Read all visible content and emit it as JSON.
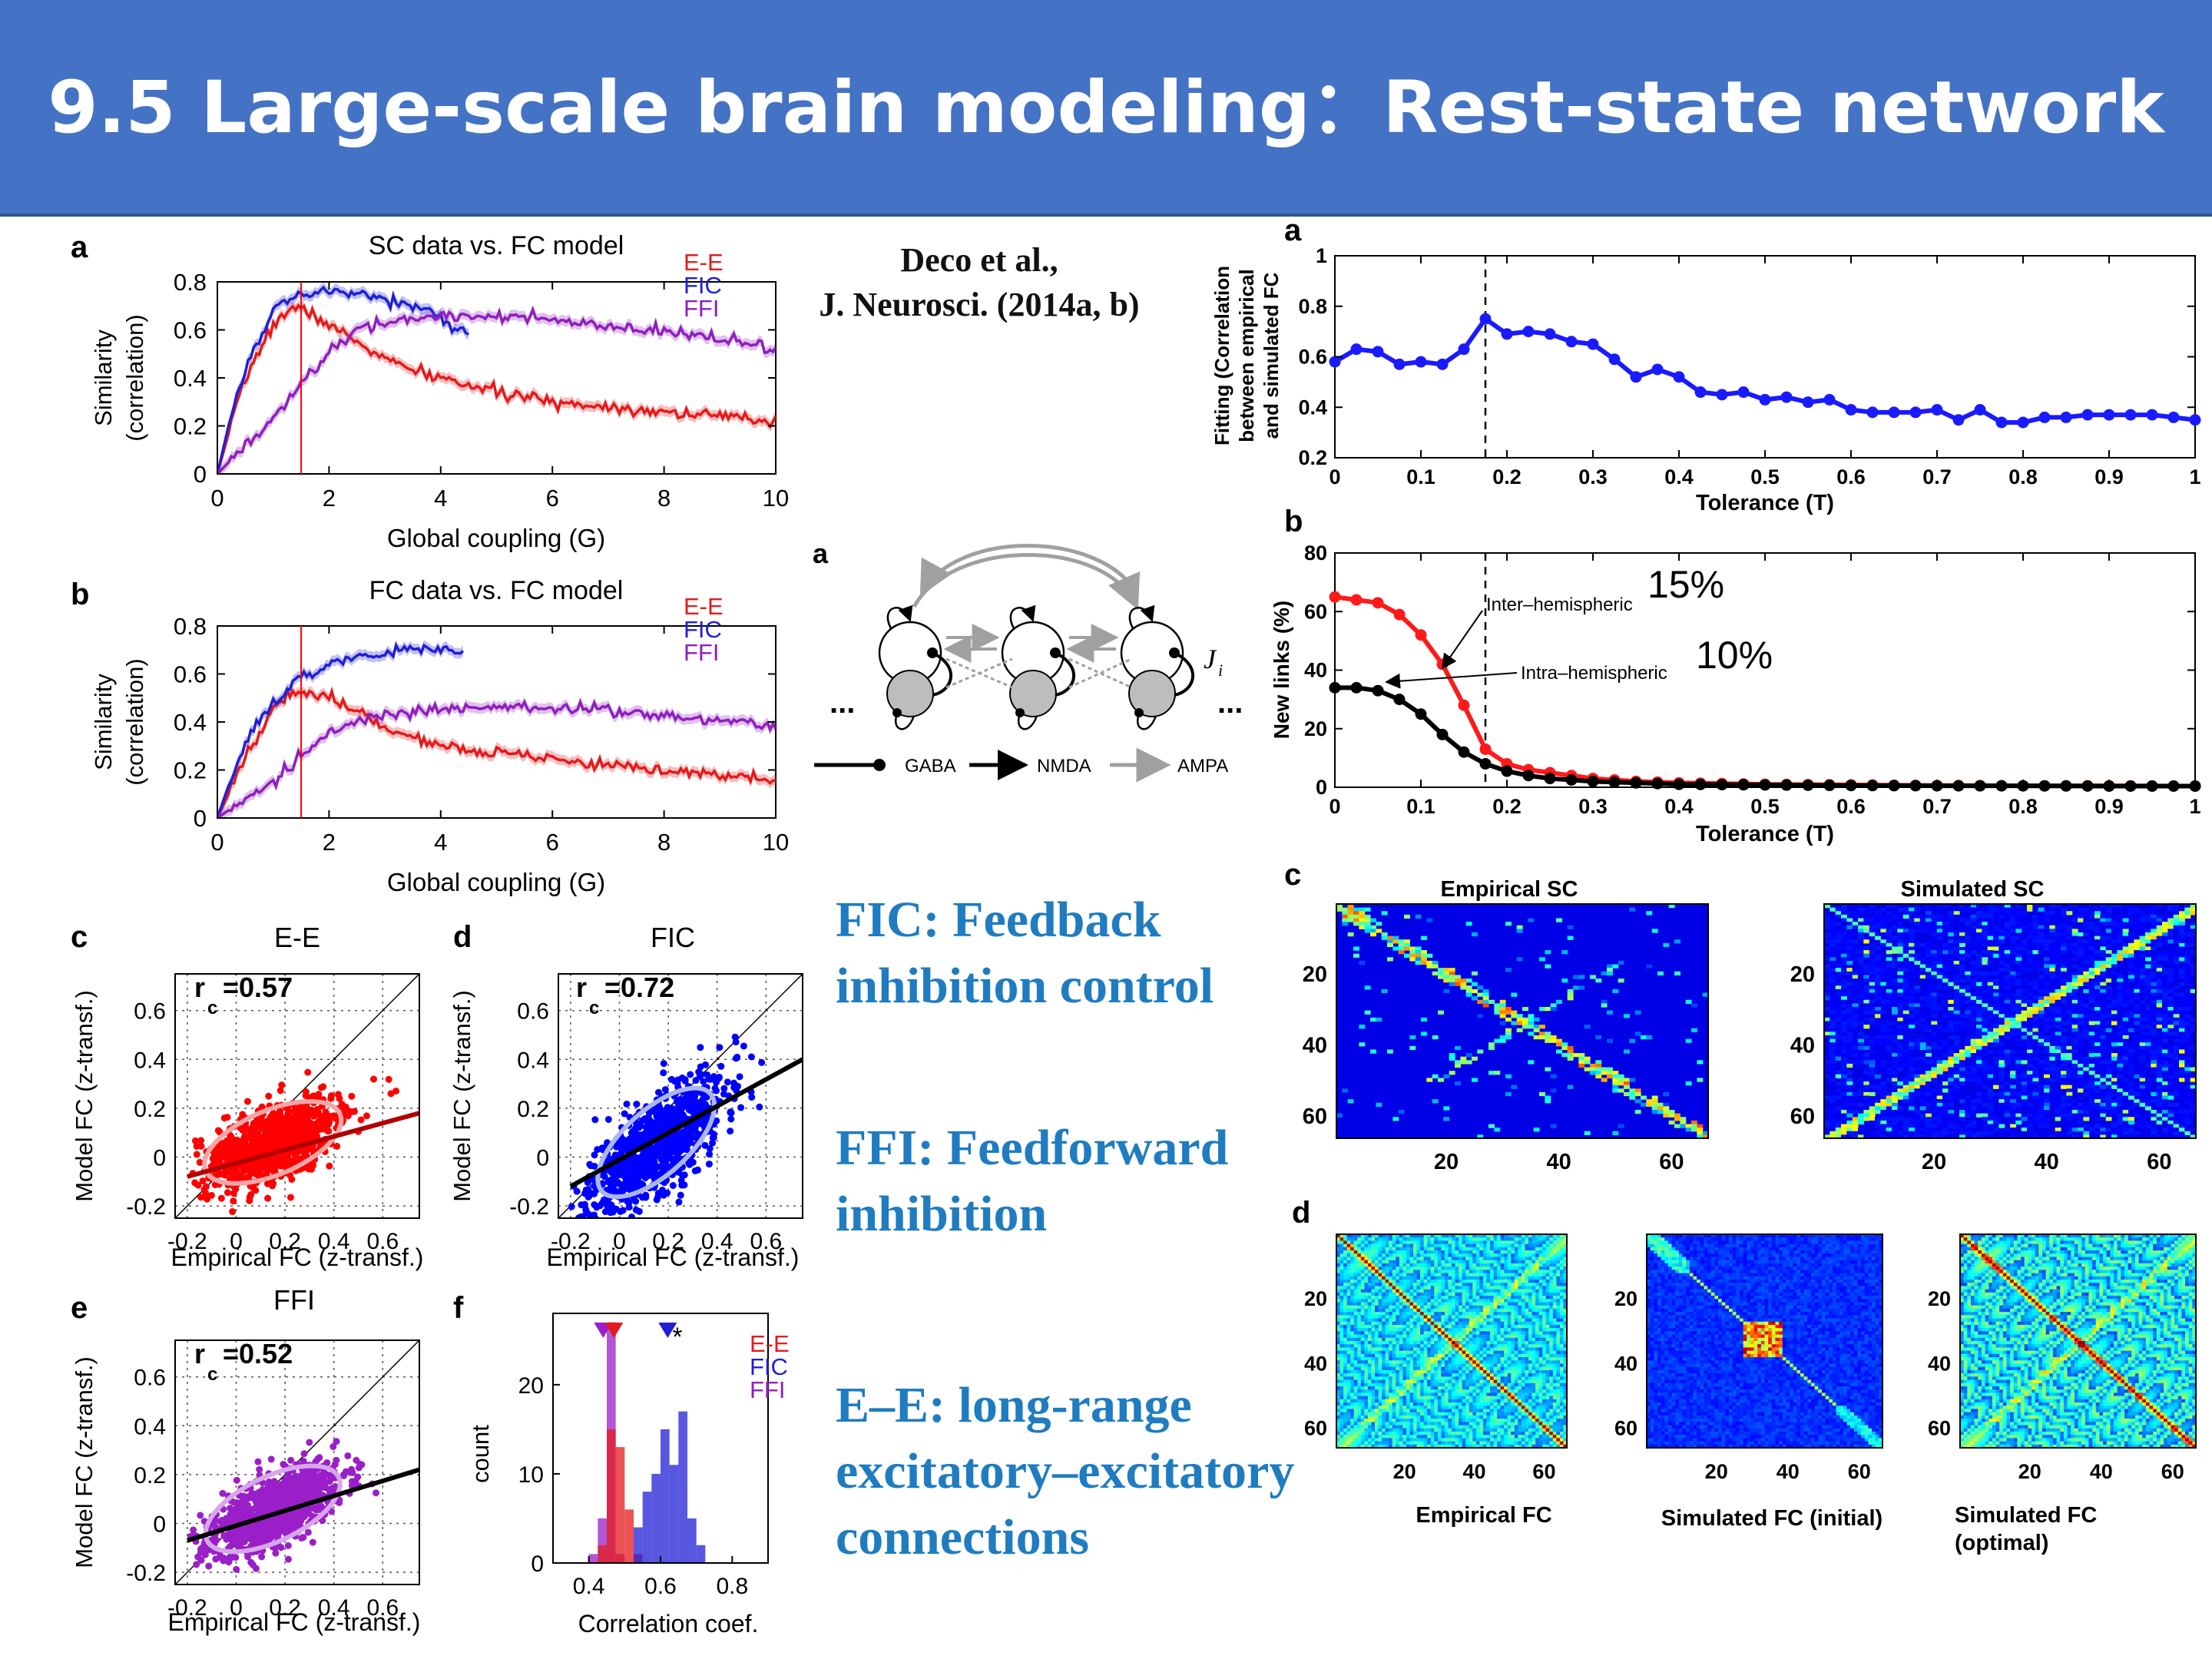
{
  "header": {
    "title": "9.5 Large-scale brain modeling：Rest-state network",
    "bg": "#4472c4"
  },
  "citation": {
    "line1": "Deco et al.,",
    "line2": "J. Neurosci. (2014a, b)"
  },
  "notes": [
    {
      "line1": "FIC: Feedback",
      "line2": "inhibition control"
    },
    {
      "line1": "FFI: Feedforward",
      "line2": "inhibition"
    },
    {
      "line1": "E–E: long-range",
      "line2": "excitatory–excitatory",
      "line3": "connections"
    }
  ],
  "colors": {
    "ee": "#e41a1c",
    "fic": "#1f1fd6",
    "ffi": "#8e1fbd"
  },
  "left_figure": {
    "legend": [
      "E-E",
      "FIC",
      "FFI"
    ],
    "marker_G": 1.5,
    "panel_a": {
      "letter": "a",
      "title": "SC data vs. FC model",
      "xlabel": "Global coupling (G)",
      "ylabel1": "Similarity",
      "ylabel2": "(correlation)"
    },
    "panel_b": {
      "letter": "b",
      "title": "FC data vs. FC model",
      "xlabel": "Global coupling (G)",
      "ylabel1": "Similarity",
      "ylabel2": "(correlation)"
    },
    "panel_c": {
      "letter": "c",
      "title": "E-E",
      "r": "=0.57",
      "xlabel": "Empirical FC (z-transf.)",
      "ylabel": "Model FC (z-transf.)"
    },
    "panel_d": {
      "letter": "d",
      "title": "FIC",
      "r": "=0.72",
      "xlabel": "Empirical FC (z-transf.)",
      "ylabel": "Model FC (z-transf.)"
    },
    "panel_e": {
      "letter": "e",
      "title": "FFI",
      "r": "=0.52",
      "xlabel": "Empirical FC (z-transf.)",
      "ylabel": "Model FC (z-transf.)"
    },
    "panel_f": {
      "letter": "f",
      "xlabel": "Correlation coef.",
      "ylabel": "count",
      "star": "*"
    },
    "r_symbol": "r",
    "r_sub": "c"
  },
  "circuit": {
    "letter": "a",
    "label_j": "J",
    "label_j_sub": "i",
    "dots": "...",
    "legend": [
      "GABA",
      "NMDA",
      "AMPA"
    ]
  },
  "right_figure": {
    "panel_a": {
      "letter": "a",
      "xlabel": "Tolerance (T)",
      "ylabel": [
        "Fitting (Correlation",
        "between empirical",
        "and simulated FC"
      ]
    },
    "panel_b": {
      "letter": "b",
      "xlabel": "Tolerance (T)",
      "ylabel": "New links (%)",
      "label_inter": "Inter–hemispheric",
      "label_intra": "Intra–hemispheric",
      "pct_inter": "15%",
      "pct_intra": "10%"
    },
    "panel_c": {
      "letter": "c",
      "titles": [
        "Empirical SC",
        "Simulated SC"
      ]
    },
    "panel_d": {
      "letter": "d",
      "titles": [
        "Empirical FC",
        "Simulated FC (initial)",
        "Simulated FC",
        "(optimal)"
      ]
    }
  },
  "chart_data": [
    {
      "type": "line",
      "title": "SC data vs. FC model",
      "xlabel": "Global coupling (G)",
      "ylabel": "Similarity (correlation)",
      "xlim": [
        0,
        10
      ],
      "ylim": [
        0,
        0.8
      ],
      "xticks": [
        0,
        2,
        4,
        6,
        8,
        10
      ],
      "yticks": [
        0,
        0.2,
        0.4,
        0.6,
        0.8
      ],
      "legend_position": "top-right",
      "series": [
        {
          "name": "E-E",
          "x": [
            0,
            0.3,
            0.6,
            1.0,
            1.3,
            1.6,
            2.0,
            2.5,
            3.0,
            3.5,
            4.0,
            5.0,
            6.0,
            7.0,
            8.0,
            9.0,
            10.0
          ],
          "y": [
            0,
            0.25,
            0.45,
            0.62,
            0.69,
            0.68,
            0.62,
            0.55,
            0.48,
            0.43,
            0.4,
            0.34,
            0.3,
            0.28,
            0.26,
            0.24,
            0.22
          ]
        },
        {
          "name": "FIC",
          "x": [
            0,
            0.3,
            0.6,
            1.0,
            1.5,
            2.0,
            2.5,
            3.0,
            3.5,
            4.0,
            4.5
          ],
          "y": [
            0,
            0.3,
            0.5,
            0.68,
            0.74,
            0.76,
            0.75,
            0.73,
            0.7,
            0.65,
            0.58
          ]
        },
        {
          "name": "FFI",
          "x": [
            0,
            0.5,
            1.0,
            1.5,
            2.0,
            2.5,
            3.0,
            4.0,
            5.0,
            6.0,
            7.0,
            8.0,
            9.0,
            10.0
          ],
          "y": [
            0,
            0.12,
            0.22,
            0.38,
            0.5,
            0.6,
            0.63,
            0.66,
            0.66,
            0.64,
            0.61,
            0.59,
            0.57,
            0.51
          ]
        }
      ]
    },
    {
      "type": "line",
      "title": "FC data vs. FC model",
      "xlabel": "Global coupling (G)",
      "ylabel": "Similarity (correlation)",
      "xlim": [
        0,
        10
      ],
      "ylim": [
        0,
        0.8
      ],
      "xticks": [
        0,
        2,
        4,
        6,
        8,
        10
      ],
      "yticks": [
        0,
        0.2,
        0.4,
        0.6,
        0.8
      ],
      "legend_position": "top-right",
      "series": [
        {
          "name": "E-E",
          "x": [
            0,
            0.3,
            0.6,
            1.0,
            1.3,
            1.6,
            2.0,
            2.5,
            3.0,
            4.0,
            5.0,
            6.0,
            7.0,
            8.0,
            9.0,
            10.0
          ],
          "y": [
            0,
            0.15,
            0.3,
            0.45,
            0.52,
            0.53,
            0.5,
            0.45,
            0.38,
            0.3,
            0.27,
            0.24,
            0.22,
            0.2,
            0.18,
            0.15
          ]
        },
        {
          "name": "FIC",
          "x": [
            0,
            0.3,
            0.6,
            1.0,
            1.5,
            2.0,
            2.5,
            3.0,
            3.5,
            4.0,
            4.4
          ],
          "y": [
            0,
            0.2,
            0.35,
            0.48,
            0.58,
            0.64,
            0.67,
            0.69,
            0.7,
            0.7,
            0.7
          ]
        },
        {
          "name": "FFI",
          "x": [
            0,
            0.5,
            1.0,
            1.5,
            2.0,
            2.5,
            3.0,
            4.0,
            5.0,
            6.0,
            7.0,
            8.0,
            9.0,
            10.0
          ],
          "y": [
            0,
            0.08,
            0.15,
            0.26,
            0.35,
            0.41,
            0.43,
            0.45,
            0.46,
            0.46,
            0.45,
            0.43,
            0.41,
            0.38
          ]
        }
      ]
    },
    {
      "type": "line",
      "xlabel": "Tolerance (T)",
      "ylabel": "Fitting (Correlation between empirical and simulated FC",
      "xlim": [
        0,
        1
      ],
      "ylim": [
        0.2,
        1
      ],
      "xticks": [
        0,
        0.1,
        0.2,
        0.3,
        0.4,
        0.5,
        0.6,
        0.7,
        0.8,
        0.9,
        1
      ],
      "yticks": [
        0.2,
        0.4,
        0.6,
        0.8,
        1
      ],
      "vline": 0.175,
      "series": [
        {
          "x": [
            0,
            0.025,
            0.05,
            0.075,
            0.1,
            0.125,
            0.15,
            0.175,
            0.2,
            0.225,
            0.25,
            0.275,
            0.3,
            0.325,
            0.35,
            0.375,
            0.4,
            0.425,
            0.45,
            0.475,
            0.5,
            0.525,
            0.55,
            0.575,
            0.6,
            0.625,
            0.65,
            0.675,
            0.7,
            0.725,
            0.75,
            0.775,
            0.8,
            0.825,
            0.85,
            0.875,
            0.9,
            0.925,
            0.95,
            0.975,
            1.0
          ],
          "y": [
            0.58,
            0.63,
            0.62,
            0.57,
            0.58,
            0.57,
            0.63,
            0.75,
            0.69,
            0.7,
            0.69,
            0.66,
            0.65,
            0.59,
            0.52,
            0.55,
            0.52,
            0.46,
            0.45,
            0.46,
            0.43,
            0.44,
            0.42,
            0.43,
            0.39,
            0.38,
            0.38,
            0.38,
            0.39,
            0.35,
            0.39,
            0.34,
            0.34,
            0.36,
            0.36,
            0.37,
            0.37,
            0.37,
            0.37,
            0.36,
            0.35
          ]
        }
      ]
    },
    {
      "type": "line",
      "xlabel": "Tolerance (T)",
      "ylabel": "New links (%)",
      "xlim": [
        0,
        1
      ],
      "ylim": [
        0,
        80
      ],
      "xticks": [
        0,
        0.1,
        0.2,
        0.3,
        0.4,
        0.5,
        0.6,
        0.7,
        0.8,
        0.9,
        1
      ],
      "yticks": [
        0,
        20,
        40,
        60,
        80
      ],
      "vline": 0.175,
      "series": [
        {
          "name": "Inter–hemispheric",
          "x": [
            0,
            0.025,
            0.05,
            0.075,
            0.1,
            0.125,
            0.15,
            0.175,
            0.2,
            0.225,
            0.25,
            0.3,
            0.35,
            0.4,
            0.5,
            0.6,
            0.7,
            0.8,
            0.9,
            1.0
          ],
          "y": [
            65,
            64,
            63,
            59,
            52,
            42,
            28,
            13,
            8,
            6,
            5,
            3,
            2,
            1.5,
            1,
            0.8,
            0.6,
            0.5,
            0.5,
            0.4
          ]
        },
        {
          "name": "Intra–hemispheric",
          "x": [
            0,
            0.025,
            0.05,
            0.075,
            0.1,
            0.125,
            0.15,
            0.175,
            0.2,
            0.225,
            0.25,
            0.3,
            0.35,
            0.4,
            0.5,
            0.6,
            0.7,
            0.8,
            0.9,
            1.0
          ],
          "y": [
            34,
            34,
            33,
            30,
            25,
            18,
            12,
            8,
            5.5,
            4,
            3,
            2,
            1.5,
            1,
            0.8,
            0.6,
            0.5,
            0.5,
            0.4,
            0.4
          ]
        }
      ]
    },
    {
      "type": "scatter",
      "title": "E-E",
      "xlabel": "Empirical FC (z-transf.)",
      "ylabel": "Model FC (z-transf.)",
      "xlim": [
        -0.25,
        0.75
      ],
      "ylim": [
        -0.25,
        0.75
      ],
      "xticks": [
        -0.2,
        0,
        0.2,
        0.4,
        0.6
      ],
      "yticks": [
        -0.2,
        0,
        0.2,
        0.4,
        0.6
      ],
      "annotation": "r_c =0.57",
      "fit_line": {
        "x": [
          -0.2,
          0.75
        ],
        "y": [
          -0.08,
          0.18
        ]
      }
    },
    {
      "type": "scatter",
      "title": "FIC",
      "xlabel": "Empirical FC (z-transf.)",
      "ylabel": "Model FC (z-transf.)",
      "xlim": [
        -0.25,
        0.75
      ],
      "ylim": [
        -0.25,
        0.75
      ],
      "xticks": [
        -0.2,
        0,
        0.2,
        0.4,
        0.6
      ],
      "yticks": [
        -0.2,
        0,
        0.2,
        0.4,
        0.6
      ],
      "annotation": "r_c =0.72",
      "fit_line": {
        "x": [
          -0.2,
          0.75
        ],
        "y": [
          -0.12,
          0.4
        ]
      }
    },
    {
      "type": "scatter",
      "title": "FFI",
      "xlabel": "Empirical FC (z-transf.)",
      "ylabel": "Model FC (z-transf.)",
      "xlim": [
        -0.25,
        0.75
      ],
      "ylim": [
        -0.25,
        0.75
      ],
      "xticks": [
        -0.2,
        0,
        0.2,
        0.4,
        0.6
      ],
      "yticks": [
        -0.2,
        0,
        0.2,
        0.4,
        0.6
      ],
      "annotation": "r_c =0.52",
      "fit_line": {
        "x": [
          -0.2,
          0.75
        ],
        "y": [
          -0.07,
          0.22
        ]
      }
    },
    {
      "type": "bar",
      "xlabel": "Correlation coef.",
      "ylabel": "count",
      "xlim": [
        0.3,
        0.9
      ],
      "ylim": [
        0,
        28
      ],
      "xticks": [
        0.4,
        0.6,
        0.8
      ],
      "yticks": [
        0,
        10,
        20
      ],
      "bin_width": 0.025,
      "series": [
        {
          "name": "FFI",
          "x": [
            0.4,
            0.425,
            0.45,
            0.475
          ],
          "values": [
            1,
            5,
            27,
            1
          ],
          "mean": 0.44
        },
        {
          "name": "E-E",
          "x": [
            0.425,
            0.45,
            0.475,
            0.5,
            0.525
          ],
          "values": [
            2,
            15,
            13,
            6,
            1
          ],
          "mean": 0.47
        },
        {
          "name": "FIC",
          "x": [
            0.525,
            0.55,
            0.575,
            0.6,
            0.625,
            0.65,
            0.675,
            0.7
          ],
          "values": [
            4,
            8,
            10,
            15,
            11,
            17,
            5,
            2
          ],
          "mean": 0.62
        }
      ]
    },
    {
      "type": "heatmap",
      "titles": [
        "Empirical SC",
        "Simulated SC"
      ],
      "xticks": [
        20,
        40,
        60
      ],
      "yticks": [
        20,
        40,
        60
      ]
    },
    {
      "type": "heatmap",
      "titles": [
        "Empirical FC",
        "Simulated FC (initial)",
        "Simulated FC (optimal)"
      ],
      "xticks": [
        20,
        40,
        60
      ],
      "yticks": [
        20,
        40,
        60
      ]
    }
  ]
}
